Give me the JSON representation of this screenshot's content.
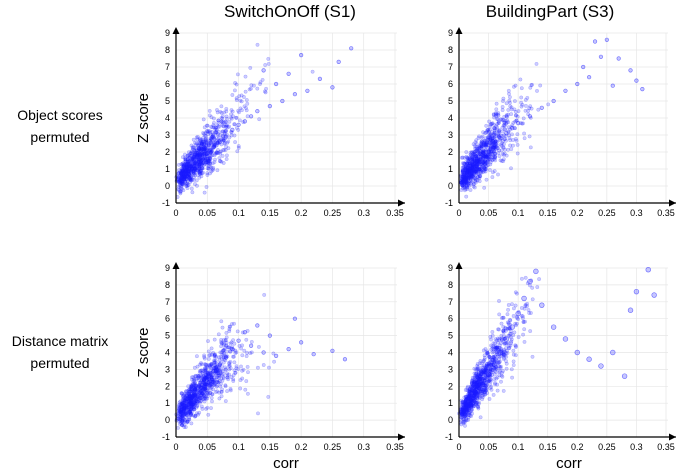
{
  "column_titles": [
    "SwitchOnOff (S1)",
    "BuildingPart (S3)"
  ],
  "row_labels": [
    [
      "Object scores",
      "permuted"
    ],
    [
      "Distance matrix",
      "permuted"
    ]
  ],
  "colors": {
    "points": "#1a1aff",
    "axis": "#000000",
    "grid": "#e6e6e6"
  },
  "chart_data": [
    {
      "type": "scatter",
      "panel": "top-left",
      "title": "",
      "xlabel": "",
      "ylabel": "Z score",
      "xlim": [
        0,
        0.35
      ],
      "ylim": [
        -1,
        9
      ],
      "xticks": [
        0,
        0.05,
        0.1,
        0.15,
        0.2,
        0.25,
        0.3,
        0.35
      ],
      "xtick_labels": [
        "0",
        "0.05",
        "0.1",
        "0.15",
        "0.2",
        "0.25",
        "0.3",
        "0.35"
      ],
      "yticks": [
        -1,
        0,
        1,
        2,
        3,
        4,
        5,
        6,
        7,
        8,
        9
      ],
      "grid": true,
      "marker": "open circle",
      "points": [
        [
          0.01,
          0.3
        ],
        [
          0.02,
          0.7
        ],
        [
          0.03,
          1.0
        ],
        [
          0.04,
          1.4
        ],
        [
          0.05,
          1.9
        ],
        [
          0.06,
          2.3
        ],
        [
          0.07,
          2.6
        ],
        [
          0.08,
          2.9
        ],
        [
          0.09,
          3.3
        ],
        [
          0.1,
          3.6
        ],
        [
          0.11,
          3.8
        ],
        [
          0.12,
          4.1
        ],
        [
          0.13,
          4.4
        ],
        [
          0.15,
          4.7
        ],
        [
          0.17,
          5.0
        ],
        [
          0.19,
          5.4
        ],
        [
          0.21,
          5.6
        ],
        [
          0.23,
          6.3
        ],
        [
          0.25,
          5.8
        ],
        [
          0.26,
          7.3
        ],
        [
          0.28,
          8.1
        ],
        [
          0.2,
          7.7
        ],
        [
          0.14,
          6.8
        ],
        [
          0.16,
          6.0
        ],
        [
          0.18,
          6.6
        ]
      ]
    },
    {
      "type": "scatter",
      "panel": "top-right",
      "title": "",
      "xlabel": "",
      "ylabel": "",
      "xlim": [
        0,
        0.35
      ],
      "ylim": [
        -1,
        9
      ],
      "xticks": [
        0,
        0.05,
        0.1,
        0.15,
        0.2,
        0.25,
        0.3,
        0.35
      ],
      "xtick_labels": [
        "0",
        "0.05",
        "0.1",
        "0.15",
        "0.2",
        "0.25",
        "0.3",
        "0.35"
      ],
      "yticks": [
        -1,
        0,
        1,
        2,
        3,
        4,
        5,
        6,
        7,
        8,
        9
      ],
      "grid": true,
      "marker": "open circle",
      "points": [
        [
          0.01,
          0.3
        ],
        [
          0.02,
          0.8
        ],
        [
          0.03,
          1.2
        ],
        [
          0.04,
          1.6
        ],
        [
          0.05,
          2.0
        ],
        [
          0.06,
          2.4
        ],
        [
          0.07,
          2.8
        ],
        [
          0.08,
          3.1
        ],
        [
          0.09,
          3.4
        ],
        [
          0.1,
          3.7
        ],
        [
          0.12,
          4.1
        ],
        [
          0.14,
          4.6
        ],
        [
          0.16,
          5.0
        ],
        [
          0.18,
          5.6
        ],
        [
          0.2,
          6.0
        ],
        [
          0.21,
          7.0
        ],
        [
          0.23,
          8.5
        ],
        [
          0.25,
          8.6
        ],
        [
          0.27,
          7.5
        ],
        [
          0.29,
          6.8
        ],
        [
          0.3,
          6.2
        ],
        [
          0.31,
          5.7
        ],
        [
          0.22,
          6.4
        ],
        [
          0.24,
          7.6
        ],
        [
          0.26,
          5.9
        ]
      ]
    },
    {
      "type": "scatter",
      "panel": "bottom-left",
      "title": "",
      "xlabel": "corr",
      "ylabel": "Z score",
      "xlim": [
        0,
        0.35
      ],
      "ylim": [
        -1,
        9
      ],
      "xticks": [
        0,
        0.05,
        0.1,
        0.15,
        0.2,
        0.25,
        0.3,
        0.35
      ],
      "xtick_labels": [
        "0",
        "0.05",
        "0.1",
        "0.15",
        "0.2",
        "0.25",
        "0.3",
        "0.35"
      ],
      "yticks": [
        -1,
        0,
        1,
        2,
        3,
        4,
        5,
        6,
        7,
        8,
        9
      ],
      "grid": true,
      "marker": "open circle",
      "points": [
        [
          0.01,
          0.4
        ],
        [
          0.02,
          0.9
        ],
        [
          0.03,
          1.4
        ],
        [
          0.04,
          1.9
        ],
        [
          0.05,
          2.4
        ],
        [
          0.06,
          2.9
        ],
        [
          0.07,
          3.3
        ],
        [
          0.08,
          3.7
        ],
        [
          0.09,
          4.2
        ],
        [
          0.1,
          4.7
        ],
        [
          0.11,
          5.2
        ],
        [
          0.12,
          4.4
        ],
        [
          0.14,
          4.0
        ],
        [
          0.16,
          3.8
        ],
        [
          0.18,
          4.2
        ],
        [
          0.2,
          4.6
        ],
        [
          0.22,
          3.9
        ],
        [
          0.25,
          4.1
        ],
        [
          0.27,
          3.6
        ],
        [
          0.19,
          6.0
        ],
        [
          0.13,
          5.6
        ],
        [
          0.15,
          5.0
        ]
      ]
    },
    {
      "type": "scatter",
      "panel": "bottom-right",
      "title": "",
      "xlabel": "corr",
      "ylabel": "",
      "xlim": [
        0,
        0.35
      ],
      "ylim": [
        -1,
        9
      ],
      "xticks": [
        0,
        0.05,
        0.1,
        0.15,
        0.2,
        0.25,
        0.3,
        0.35
      ],
      "xtick_labels": [
        "0",
        "0.05",
        "0.1",
        "0.15",
        "0.2",
        "0.25",
        "0.3",
        "0.35"
      ],
      "yticks": [
        -1,
        0,
        1,
        2,
        3,
        4,
        5,
        6,
        7,
        8,
        9
      ],
      "grid": true,
      "marker": "open circle",
      "points": [
        [
          0.01,
          0.3
        ],
        [
          0.02,
          0.9
        ],
        [
          0.03,
          1.5
        ],
        [
          0.04,
          2.1
        ],
        [
          0.05,
          2.7
        ],
        [
          0.06,
          3.3
        ],
        [
          0.07,
          4.0
        ],
        [
          0.08,
          4.8
        ],
        [
          0.09,
          5.5
        ],
        [
          0.1,
          6.3
        ],
        [
          0.11,
          7.2
        ],
        [
          0.12,
          8.2
        ],
        [
          0.13,
          8.8
        ],
        [
          0.14,
          6.8
        ],
        [
          0.16,
          5.5
        ],
        [
          0.18,
          4.8
        ],
        [
          0.2,
          4.0
        ],
        [
          0.22,
          3.6
        ],
        [
          0.24,
          3.2
        ],
        [
          0.26,
          4.0
        ],
        [
          0.29,
          6.5
        ],
        [
          0.3,
          7.6
        ],
        [
          0.32,
          8.9
        ],
        [
          0.33,
          7.4
        ],
        [
          0.28,
          2.6
        ]
      ]
    }
  ]
}
